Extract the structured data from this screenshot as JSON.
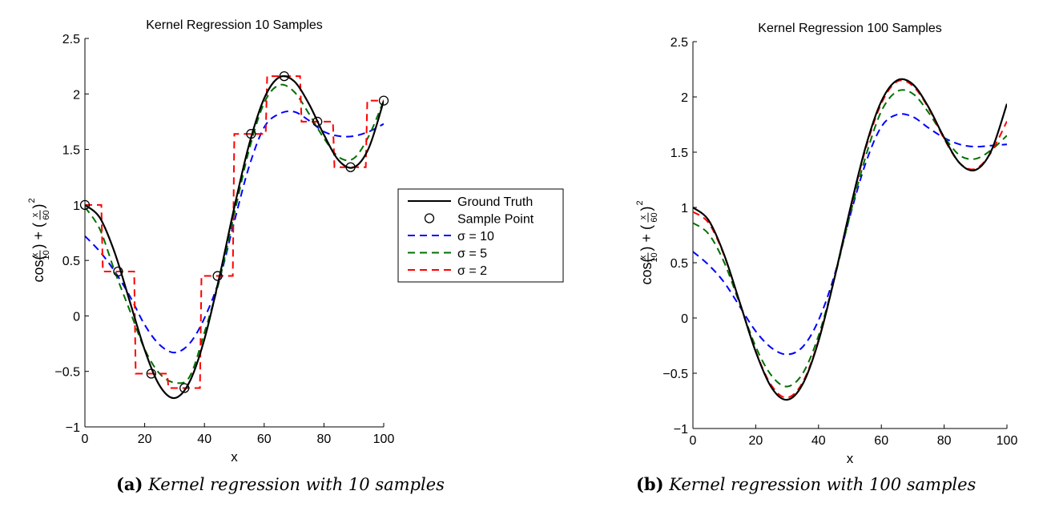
{
  "chart_data": [
    {
      "type": "line",
      "title": "Kernel Regression 10 Samples",
      "xlabel": "x",
      "ylabel": "cos(x/10) + (x/60)^2",
      "xlim": [
        0,
        100
      ],
      "ylim": [
        -1,
        2.5
      ],
      "xticks": [
        "0",
        "20",
        "40",
        "60",
        "80",
        "100"
      ],
      "yticks": [
        "−1",
        "−0.5",
        "0",
        "0.5",
        "1",
        "1.5",
        "2",
        "2.5"
      ],
      "grid": false,
      "legend": {
        "placement": "right-outside",
        "entries": [
          "Ground Truth",
          "Sample Point",
          "σ = 10",
          "σ = 5",
          "σ = 2"
        ]
      },
      "series": [
        {
          "name": "Ground Truth",
          "style": "solid",
          "color": "#000000",
          "x": [
            0,
            5,
            10,
            15,
            20,
            25,
            30,
            35,
            40,
            45,
            50,
            55,
            60,
            65,
            70,
            75,
            80,
            85,
            90,
            95,
            100
          ],
          "y": [
            1.0,
            0.884,
            0.568,
            0.133,
            -0.305,
            -0.628,
            -0.74,
            -0.596,
            -0.209,
            0.352,
            0.978,
            1.548,
            1.96,
            2.15,
            2.115,
            1.909,
            1.632,
            1.399,
            1.339,
            1.512,
            1.938
          ]
        },
        {
          "name": "Sample Point",
          "style": "markers",
          "color": "#000000",
          "x": [
            0,
            11.1,
            22.2,
            33.3,
            44.4,
            55.6,
            66.7,
            77.8,
            88.9,
            100
          ],
          "y": [
            1.0,
            0.4,
            -0.52,
            -0.65,
            0.36,
            1.64,
            2.16,
            1.75,
            1.34,
            1.94
          ]
        },
        {
          "name": "σ = 10",
          "style": "dashed",
          "color": "#0000ff",
          "x": [
            0,
            5,
            10,
            15,
            20,
            25,
            30,
            35,
            40,
            45,
            50,
            55,
            60,
            65,
            70,
            75,
            80,
            85,
            90,
            95,
            100
          ],
          "y": [
            0.72,
            0.58,
            0.4,
            0.18,
            -0.08,
            -0.26,
            -0.33,
            -0.25,
            -0.02,
            0.33,
            0.85,
            1.35,
            1.7,
            1.82,
            1.84,
            1.76,
            1.66,
            1.62,
            1.62,
            1.66,
            1.73
          ]
        },
        {
          "name": "σ = 5",
          "style": "dashed",
          "color": "#007000",
          "x": [
            0,
            5,
            10,
            15,
            20,
            25,
            30,
            35,
            40,
            45,
            50,
            55,
            60,
            65,
            70,
            75,
            80,
            85,
            90,
            95,
            100
          ],
          "y": [
            0.98,
            0.78,
            0.4,
            0.05,
            -0.3,
            -0.52,
            -0.6,
            -0.55,
            -0.15,
            0.32,
            0.92,
            1.5,
            1.92,
            2.08,
            2.02,
            1.82,
            1.6,
            1.43,
            1.42,
            1.62,
            1.94
          ]
        },
        {
          "name": "σ = 2",
          "style": "dashed",
          "color": "#ff0000",
          "x": [
            0,
            5.5,
            6,
            16.5,
            17,
            27.5,
            28,
            38.5,
            39,
            49.5,
            50,
            60.5,
            61,
            72,
            72.5,
            83,
            83.5,
            94,
            94.5,
            100
          ],
          "y": [
            1.0,
            1.0,
            0.4,
            0.4,
            -0.52,
            -0.52,
            -0.65,
            -0.65,
            0.36,
            0.36,
            1.64,
            1.64,
            2.16,
            2.16,
            1.75,
            1.75,
            1.34,
            1.34,
            1.94,
            1.94
          ]
        }
      ]
    },
    {
      "type": "line",
      "title": "Kernel Regression 100 Samples",
      "xlabel": "x",
      "ylabel": "cos(x/10) + (x/60)^2",
      "xlim": [
        0,
        100
      ],
      "ylim": [
        -1,
        2.5
      ],
      "xticks": [
        "0",
        "20",
        "40",
        "60",
        "80",
        "100"
      ],
      "yticks": [
        "−1",
        "−0.5",
        "0",
        "0.5",
        "1",
        "1.5",
        "2",
        "2.5"
      ],
      "grid": false,
      "series": [
        {
          "name": "Ground Truth",
          "style": "solid",
          "color": "#000000",
          "x": [
            0,
            5,
            10,
            15,
            20,
            25,
            30,
            35,
            40,
            45,
            50,
            55,
            60,
            65,
            70,
            75,
            80,
            85,
            90,
            95,
            100
          ],
          "y": [
            1.0,
            0.884,
            0.568,
            0.133,
            -0.305,
            -0.628,
            -0.74,
            -0.596,
            -0.209,
            0.352,
            0.978,
            1.548,
            1.96,
            2.15,
            2.115,
            1.909,
            1.632,
            1.399,
            1.339,
            1.512,
            1.938
          ]
        },
        {
          "name": "σ = 10",
          "style": "dashed",
          "color": "#0000ff",
          "x": [
            0,
            5,
            10,
            15,
            20,
            25,
            30,
            35,
            40,
            45,
            50,
            55,
            60,
            65,
            70,
            75,
            80,
            85,
            90,
            95,
            100
          ],
          "y": [
            0.6,
            0.48,
            0.32,
            0.1,
            -0.12,
            -0.27,
            -0.33,
            -0.26,
            -0.02,
            0.38,
            0.92,
            1.4,
            1.73,
            1.84,
            1.82,
            1.72,
            1.63,
            1.57,
            1.55,
            1.56,
            1.57
          ]
        },
        {
          "name": "σ = 5",
          "style": "dashed",
          "color": "#007000",
          "x": [
            0,
            5,
            10,
            15,
            20,
            25,
            30,
            35,
            40,
            45,
            50,
            55,
            60,
            65,
            70,
            75,
            80,
            85,
            90,
            95,
            100
          ],
          "y": [
            0.86,
            0.76,
            0.5,
            0.12,
            -0.26,
            -0.52,
            -0.62,
            -0.5,
            -0.16,
            0.35,
            0.93,
            1.46,
            1.87,
            2.05,
            2.03,
            1.86,
            1.64,
            1.47,
            1.44,
            1.52,
            1.65
          ]
        },
        {
          "name": "σ = 2",
          "style": "dashed",
          "color": "#ff0000",
          "x": [
            0,
            5,
            10,
            15,
            20,
            25,
            30,
            35,
            40,
            45,
            50,
            55,
            60,
            65,
            70,
            75,
            80,
            85,
            90,
            95,
            100
          ],
          "y": [
            0.96,
            0.86,
            0.56,
            0.13,
            -0.3,
            -0.61,
            -0.72,
            -0.58,
            -0.2,
            0.35,
            0.97,
            1.53,
            1.94,
            2.14,
            2.1,
            1.9,
            1.62,
            1.4,
            1.35,
            1.5,
            1.78
          ]
        }
      ]
    }
  ],
  "captions": [
    {
      "label": "(a)",
      "text": "Kernel regression with 10 samples"
    },
    {
      "label": "(b)",
      "text": "Kernel regression with 100 samples"
    }
  ]
}
